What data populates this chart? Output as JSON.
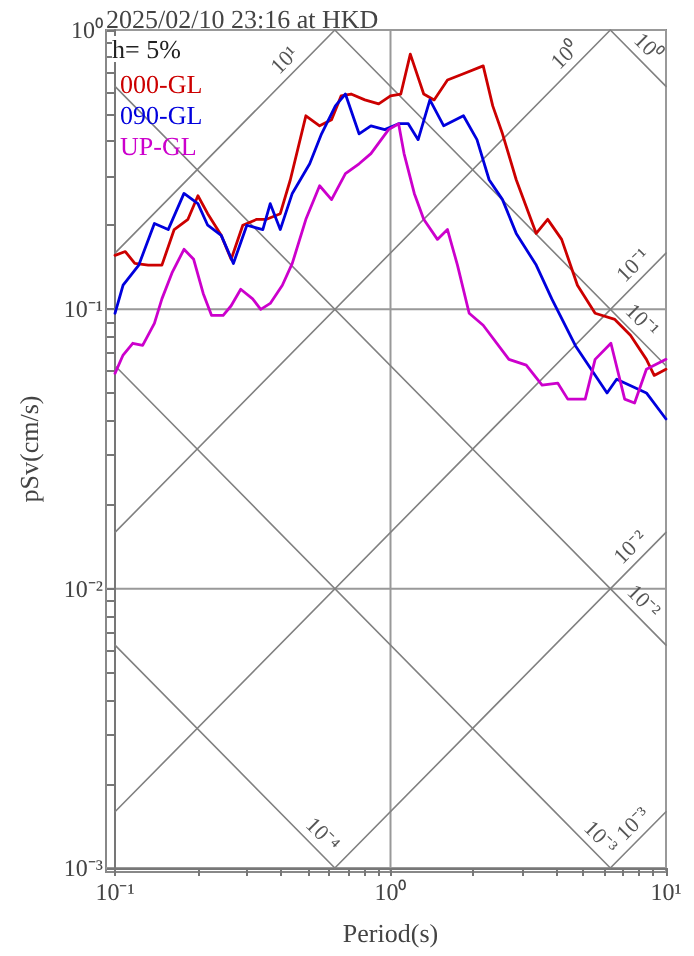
{
  "chart_data": {
    "type": "line",
    "title": "2025/02/10 23:16 at HKD",
    "xlabel": "Period(s)",
    "ylabel": "pSv(cm/s)",
    "log": "xy",
    "grid": true,
    "legend": "top left",
    "marker": "none",
    "line_style": "solid",
    "xlim": [
      0.1,
      10
    ],
    "ylim": [
      0.001,
      1
    ],
    "xticks": [
      {
        "value": 0.1,
        "label": "10⁻¹"
      },
      {
        "value": 0.2,
        "label": null
      },
      {
        "value": 0.3,
        "label": null
      },
      {
        "value": 0.4,
        "label": null
      },
      {
        "value": 0.5,
        "label": null
      },
      {
        "value": 0.6,
        "label": null
      },
      {
        "value": 0.7,
        "label": null
      },
      {
        "value": 0.8,
        "label": null
      },
      {
        "value": 0.9,
        "label": null
      },
      {
        "value": 1,
        "label": "10⁰"
      },
      {
        "value": 2,
        "label": null
      },
      {
        "value": 3,
        "label": null
      },
      {
        "value": 4,
        "label": null
      },
      {
        "value": 5,
        "label": null
      },
      {
        "value": 6,
        "label": null
      },
      {
        "value": 7,
        "label": null
      },
      {
        "value": 8,
        "label": null
      },
      {
        "value": 9,
        "label": null
      },
      {
        "value": 10,
        "label": "10¹"
      }
    ],
    "yticks": [
      {
        "value": 0.001,
        "label": "10⁻³"
      },
      {
        "value": 0.002,
        "label": null
      },
      {
        "value": 0.003,
        "label": null
      },
      {
        "value": 0.004,
        "label": null
      },
      {
        "value": 0.005,
        "label": null
      },
      {
        "value": 0.006,
        "label": null
      },
      {
        "value": 0.007,
        "label": null
      },
      {
        "value": 0.008,
        "label": null
      },
      {
        "value": 0.009,
        "label": null
      },
      {
        "value": 0.01,
        "label": "10⁻²"
      },
      {
        "value": 0.02,
        "label": null
      },
      {
        "value": 0.03,
        "label": null
      },
      {
        "value": 0.04,
        "label": null
      },
      {
        "value": 0.05,
        "label": null
      },
      {
        "value": 0.06,
        "label": null
      },
      {
        "value": 0.07,
        "label": null
      },
      {
        "value": 0.08,
        "label": null
      },
      {
        "value": 0.09,
        "label": null
      },
      {
        "value": 0.1,
        "label": "10⁻¹"
      },
      {
        "value": 0.2,
        "label": null
      },
      {
        "value": 0.3,
        "label": null
      },
      {
        "value": 0.4,
        "label": null
      },
      {
        "value": 0.5,
        "label": null
      },
      {
        "value": 0.6,
        "label": null
      },
      {
        "value": 0.7,
        "label": null
      },
      {
        "value": 0.8,
        "label": null
      },
      {
        "value": 0.9,
        "label": null
      },
      {
        "value": 1,
        "label": "10⁰"
      }
    ],
    "annotations": [
      "h= 5%",
      {
        "text": "10¹",
        "x": 0.45,
        "y": 0.716
      },
      {
        "text": "10⁰",
        "x": 4.7,
        "y": 0.747
      },
      {
        "text": "10⁰",
        "x": 7.9,
        "y": 0.795
      },
      {
        "text": "10⁻¹",
        "x": 8.3,
        "y": 0.132
      },
      {
        "text": "10⁻¹",
        "x": 7.5,
        "y": 0.0837
      },
      {
        "text": "10⁻²",
        "x": 8.1,
        "y": 0.0129
      },
      {
        "text": "10⁻²",
        "x": 7.6,
        "y": 0.00826
      },
      {
        "text": "10⁻³",
        "x": 5.3,
        "y": 0.00118
      },
      {
        "text": "10⁻³",
        "x": 8.3,
        "y": 0.00132
      },
      {
        "text": "10⁻⁴",
        "x": 0.52,
        "y": 0.00121
      }
    ],
    "series": [
      {
        "name": "000-GL",
        "color": "#cc0000",
        "x": [
          0.1,
          0.109,
          0.118,
          0.132,
          0.148,
          0.164,
          0.184,
          0.2,
          0.217,
          0.243,
          0.264,
          0.291,
          0.327,
          0.355,
          0.398,
          0.433,
          0.493,
          0.553,
          0.611,
          0.662,
          0.719,
          0.807,
          0.906,
          1,
          1.09,
          1.18,
          1.32,
          1.44,
          1.61,
          1.84,
          2.17,
          2.35,
          2.55,
          2.86,
          3.38,
          3.72,
          4.18,
          4.77,
          5.53,
          6.52,
          7.43,
          8.49,
          9.06,
          10
        ],
        "values": [
          0.156,
          0.161,
          0.146,
          0.144,
          0.144,
          0.193,
          0.21,
          0.255,
          0.22,
          0.184,
          0.151,
          0.2,
          0.21,
          0.21,
          0.22,
          0.291,
          0.493,
          0.454,
          0.477,
          0.581,
          0.59,
          0.562,
          0.544,
          0.581,
          0.59,
          0.82,
          0.59,
          0.562,
          0.662,
          0.697,
          0.744,
          0.535,
          0.425,
          0.291,
          0.187,
          0.21,
          0.178,
          0.122,
          0.0968,
          0.092,
          0.0807,
          0.0662,
          0.058,
          0.061
        ]
      },
      {
        "name": "090-GL",
        "color": "#0000dd",
        "x": [
          0.1,
          0.107,
          0.122,
          0.139,
          0.156,
          0.178,
          0.2,
          0.217,
          0.243,
          0.269,
          0.301,
          0.344,
          0.366,
          0.398,
          0.44,
          0.509,
          0.562,
          0.631,
          0.686,
          0.769,
          0.849,
          0.953,
          1.07,
          1.16,
          1.26,
          1.39,
          1.56,
          1.84,
          2.06,
          2.28,
          2.55,
          2.86,
          3.38,
          3.85,
          4.69,
          6.11,
          6.62,
          8.49,
          10
        ],
        "values": [
          0.0968,
          0.122,
          0.144,
          0.203,
          0.193,
          0.26,
          0.239,
          0.2,
          0.184,
          0.146,
          0.2,
          0.193,
          0.239,
          0.193,
          0.26,
          0.332,
          0.425,
          0.535,
          0.59,
          0.425,
          0.454,
          0.44,
          0.462,
          0.462,
          0.405,
          0.562,
          0.454,
          0.493,
          0.405,
          0.291,
          0.247,
          0.187,
          0.144,
          0.109,
          0.0741,
          0.0502,
          0.0562,
          0.0502,
          0.0405
        ]
      },
      {
        "name": "UP-GL",
        "color": "#cc00cc",
        "x": [
          0.1,
          0.107,
          0.116,
          0.126,
          0.139,
          0.148,
          0.161,
          0.178,
          0.193,
          0.209,
          0.224,
          0.247,
          0.264,
          0.286,
          0.316,
          0.338,
          0.366,
          0.405,
          0.44,
          0.493,
          0.553,
          0.611,
          0.686,
          0.769,
          0.849,
          0.984,
          1.07,
          1.12,
          1.22,
          1.32,
          1.48,
          1.61,
          1.75,
          1.93,
          2.17,
          2.69,
          3.11,
          3.55,
          4.05,
          4.4,
          5.09,
          5.53,
          6.31,
          7.08,
          7.69,
          8.49,
          10
        ],
        "values": [
          0.059,
          0.0686,
          0.0756,
          0.0743,
          0.0891,
          0.109,
          0.135,
          0.164,
          0.151,
          0.114,
          0.0952,
          0.0952,
          0.103,
          0.118,
          0.109,
          0.1,
          0.105,
          0.122,
          0.146,
          0.21,
          0.277,
          0.247,
          0.306,
          0.332,
          0.361,
          0.44,
          0.462,
          0.361,
          0.26,
          0.21,
          0.178,
          0.193,
          0.144,
          0.0968,
          0.0877,
          0.0662,
          0.0631,
          0.0535,
          0.0544,
          0.0477,
          0.0477,
          0.0662,
          0.0756,
          0.0477,
          0.0462,
          0.061,
          0.0662
        ]
      },
      {
        "color": "#808080",
        "x": [
          0.1,
          0.628
        ],
        "values": [
          0.00628,
          0.001
        ]
      },
      {
        "color": "#808080",
        "x": [
          0.1,
          6.28
        ],
        "values": [
          0.0628,
          0.001
        ]
      },
      {
        "color": "#808080",
        "x": [
          0.1,
          10
        ],
        "values": [
          0.628,
          0.00628
        ]
      },
      {
        "color": "#808080",
        "x": [
          0.628,
          10
        ],
        "values": [
          1,
          0.0628
        ]
      },
      {
        "color": "#808080",
        "x": [
          6.28,
          10
        ],
        "values": [
          1,
          0.628
        ]
      },
      {
        "color": "#808080",
        "x": [
          6.28,
          10
        ],
        "values": [
          0.001,
          0.00159
        ]
      },
      {
        "color": "#808080",
        "x": [
          0.628,
          10
        ],
        "values": [
          0.001,
          0.0159
        ]
      },
      {
        "color": "#808080",
        "x": [
          0.1,
          10
        ],
        "values": [
          0.00159,
          0.159
        ]
      },
      {
        "color": "#808080",
        "x": [
          0.1,
          6.28
        ],
        "values": [
          0.0159,
          1
        ]
      },
      {
        "color": "#808080",
        "x": [
          0.1,
          0.628
        ],
        "values": [
          0.159,
          1
        ]
      }
    ]
  }
}
